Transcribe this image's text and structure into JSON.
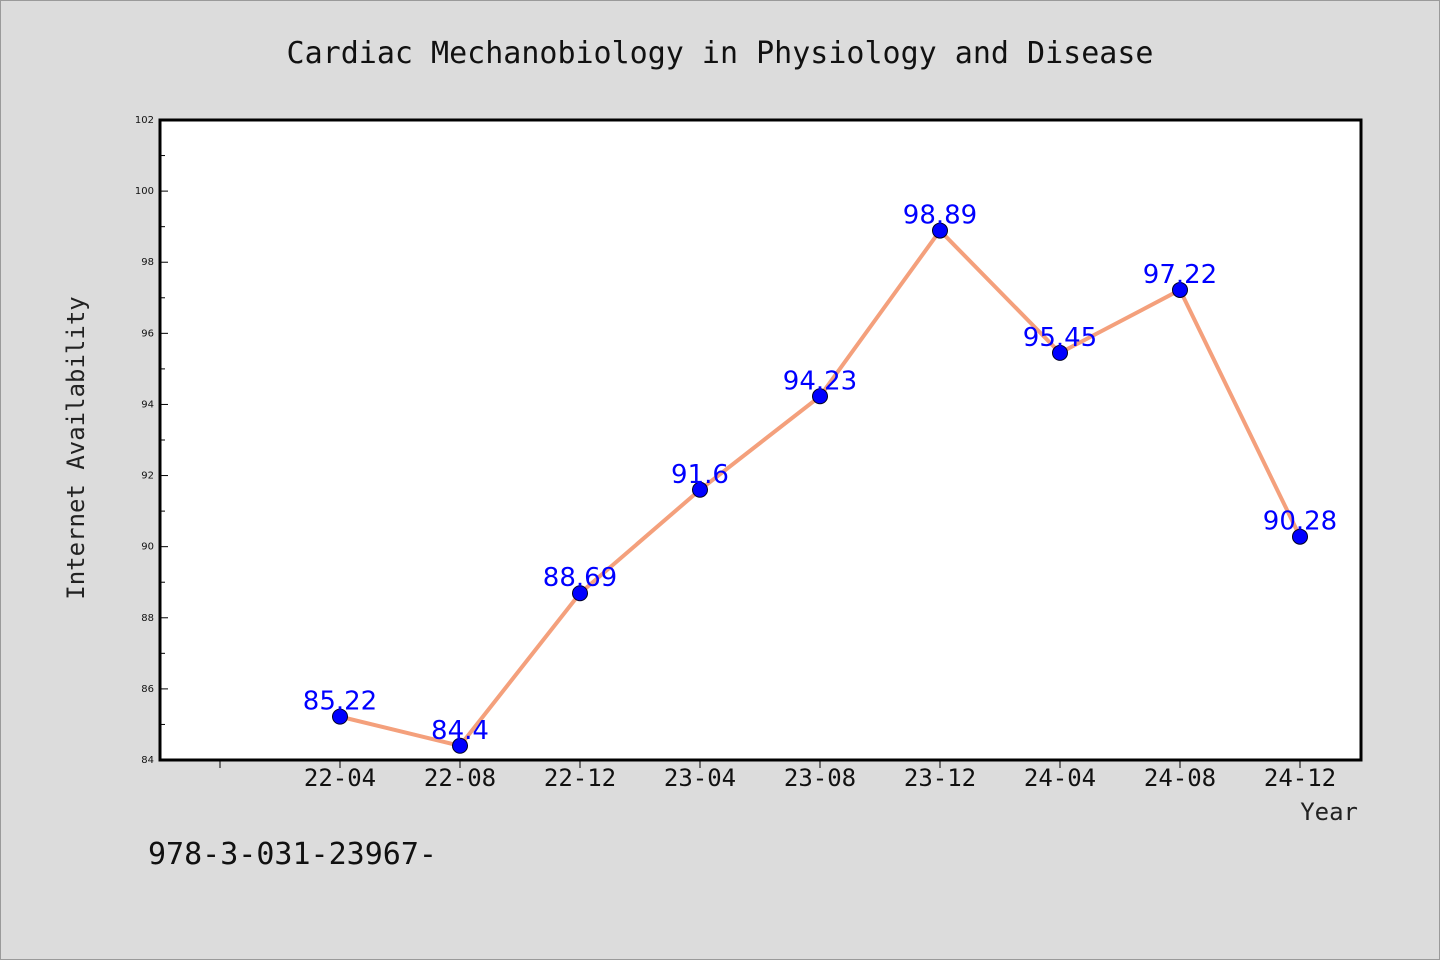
{
  "chart_data": {
    "type": "line",
    "title": "Cardiac Mechanobiology in Physiology and Disease",
    "xlabel": "Year",
    "ylabel": "Internet Availability",
    "categories": [
      "22-04",
      "22-08",
      "22-12",
      "23-04",
      "23-08",
      "23-12",
      "24-04",
      "24-08",
      "24-12"
    ],
    "series": [
      {
        "values": [
          85.22,
          84.4,
          88.69,
          91.6,
          94.23,
          98.89,
          95.45,
          97.22,
          90.28
        ],
        "labels": [
          "85.22",
          "84.4",
          "88.69",
          "91.6",
          "94.23",
          "98.89",
          "95.45",
          "97.22",
          "90.28"
        ]
      }
    ],
    "ylim": [
      84,
      102
    ],
    "yticks": [
      "84",
      "86",
      "88",
      "90",
      "92",
      "94",
      "96",
      "98",
      "100",
      "102"
    ],
    "grid": false,
    "colors": {
      "line": "#f4a07c",
      "marker": "#0000ff",
      "label": "#0000ff"
    }
  },
  "footer": {
    "text": "978-3-031-23967-"
  }
}
